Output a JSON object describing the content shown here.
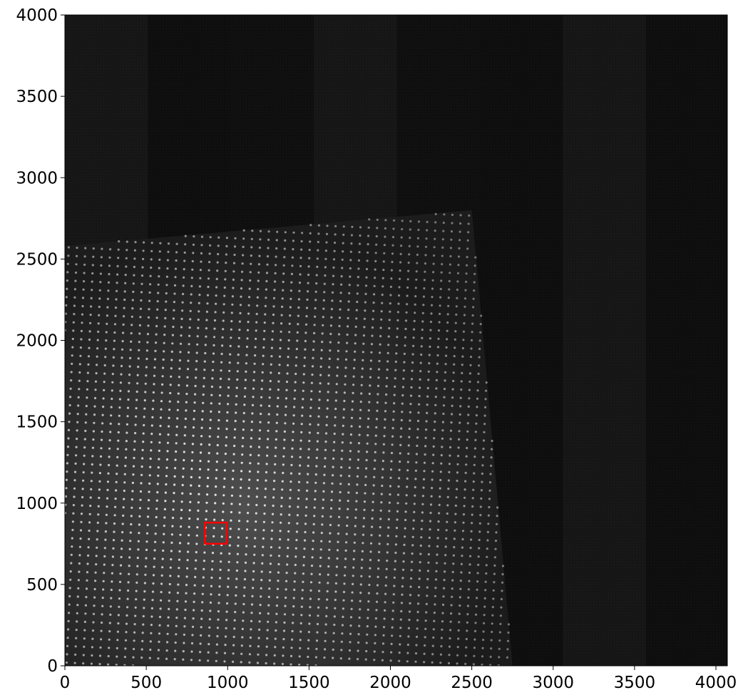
{
  "image": {
    "description_colors": {
      "background": "#0b0b0b",
      "spot": "#e6e6e6",
      "highlight_box": "#ff0000",
      "axis": "#000000"
    },
    "data_extent": {
      "x": [
        0,
        4070
      ],
      "y": [
        0,
        4000
      ]
    },
    "highlight_region": {
      "x": [
        860,
        990
      ],
      "y": [
        750,
        880
      ]
    }
  },
  "chart_data": {
    "type": "heatmap",
    "title": "",
    "xlabel": "",
    "ylabel": "",
    "xlim": [
      0,
      4070
    ],
    "ylim": [
      0,
      4000
    ],
    "x_ticks": [
      "0",
      "500",
      "1000",
      "1500",
      "2000",
      "2500",
      "3000",
      "3500",
      "4000"
    ],
    "y_ticks": [
      "0",
      "500",
      "1000",
      "1500",
      "2000",
      "2500",
      "3000",
      "3500",
      "4000"
    ],
    "grid": false,
    "colormap": "gray",
    "lattice_region": {
      "corners": [
        [
          0,
          0
        ],
        [
          2750,
          0
        ],
        [
          2500,
          2800
        ],
        [
          0,
          2580
        ]
      ]
    }
  }
}
